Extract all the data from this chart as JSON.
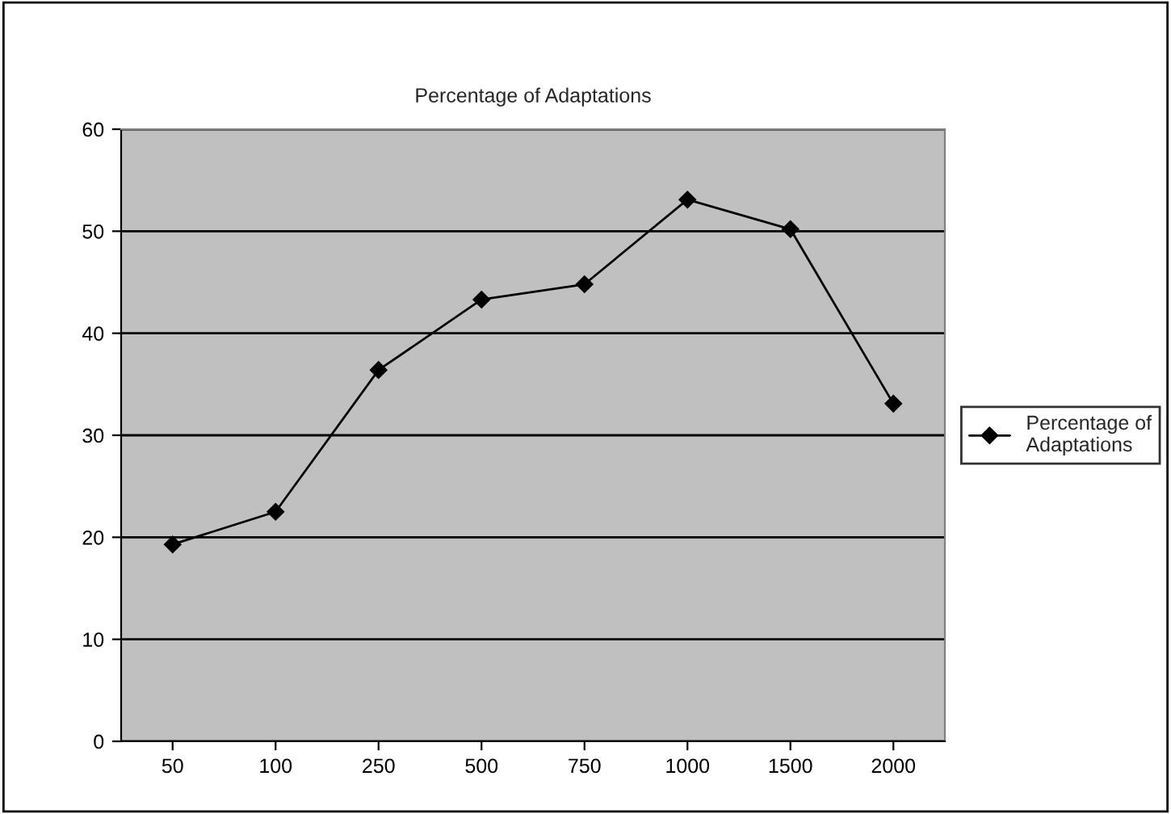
{
  "chart_data": {
    "type": "line",
    "title": "Percentage of Adaptations",
    "categories": [
      "50",
      "100",
      "250",
      "500",
      "750",
      "1000",
      "1500",
      "2000"
    ],
    "series": [
      {
        "name": "Percentage of Adaptations",
        "color": "#000000",
        "values": [
          19.3,
          22.5,
          36.4,
          43.3,
          44.8,
          53.1,
          50.2,
          33.1
        ]
      }
    ],
    "ylim": [
      0,
      60
    ],
    "yticks": [
      0,
      10,
      20,
      30,
      40,
      50,
      60
    ],
    "grid": "y",
    "legend": "right",
    "marker": "diamond",
    "line_style": "solid"
  }
}
